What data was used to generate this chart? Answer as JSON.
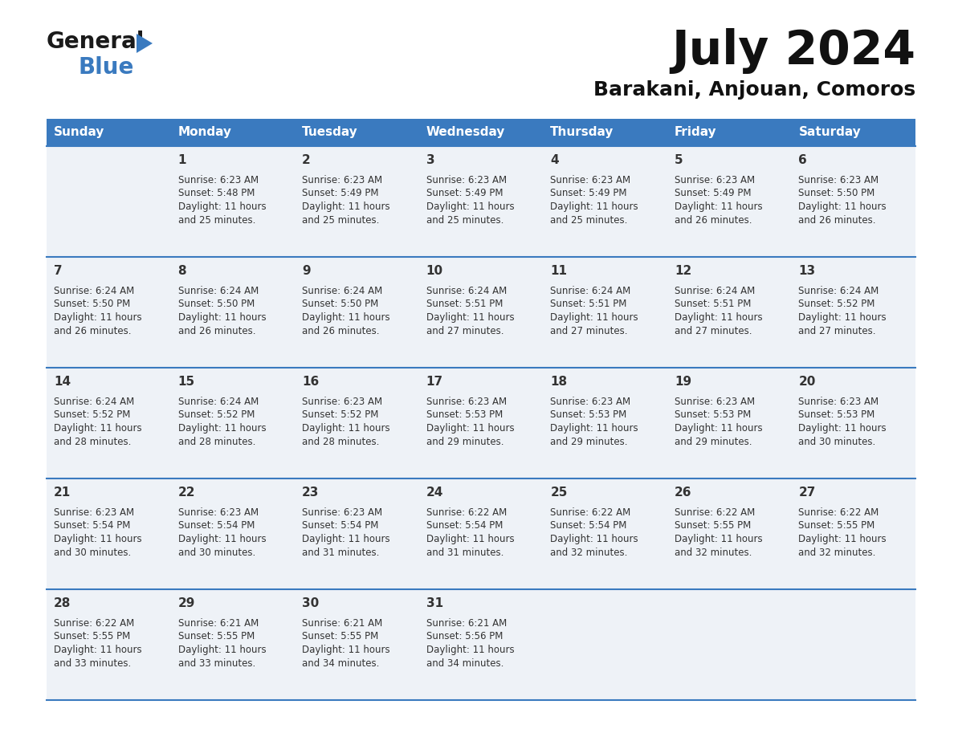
{
  "title": "July 2024",
  "subtitle": "Barakani, Anjouan, Comoros",
  "header_bg": "#3a7abf",
  "header_text_color": "#ffffff",
  "cell_bg": "#eef2f7",
  "divider_color": "#3a7abf",
  "text_color": "#333333",
  "days_of_week": [
    "Sunday",
    "Monday",
    "Tuesday",
    "Wednesday",
    "Thursday",
    "Friday",
    "Saturday"
  ],
  "calendar": [
    [
      {
        "day": "",
        "sunrise": "",
        "sunset": "",
        "daylight": ""
      },
      {
        "day": "1",
        "sunrise": "6:23 AM",
        "sunset": "5:48 PM",
        "daylight": "11 hours and 25 minutes."
      },
      {
        "day": "2",
        "sunrise": "6:23 AM",
        "sunset": "5:49 PM",
        "daylight": "11 hours and 25 minutes."
      },
      {
        "day": "3",
        "sunrise": "6:23 AM",
        "sunset": "5:49 PM",
        "daylight": "11 hours and 25 minutes."
      },
      {
        "day": "4",
        "sunrise": "6:23 AM",
        "sunset": "5:49 PM",
        "daylight": "11 hours and 25 minutes."
      },
      {
        "day": "5",
        "sunrise": "6:23 AM",
        "sunset": "5:49 PM",
        "daylight": "11 hours and 26 minutes."
      },
      {
        "day": "6",
        "sunrise": "6:23 AM",
        "sunset": "5:50 PM",
        "daylight": "11 hours and 26 minutes."
      }
    ],
    [
      {
        "day": "7",
        "sunrise": "6:24 AM",
        "sunset": "5:50 PM",
        "daylight": "11 hours and 26 minutes."
      },
      {
        "day": "8",
        "sunrise": "6:24 AM",
        "sunset": "5:50 PM",
        "daylight": "11 hours and 26 minutes."
      },
      {
        "day": "9",
        "sunrise": "6:24 AM",
        "sunset": "5:50 PM",
        "daylight": "11 hours and 26 minutes."
      },
      {
        "day": "10",
        "sunrise": "6:24 AM",
        "sunset": "5:51 PM",
        "daylight": "11 hours and 27 minutes."
      },
      {
        "day": "11",
        "sunrise": "6:24 AM",
        "sunset": "5:51 PM",
        "daylight": "11 hours and 27 minutes."
      },
      {
        "day": "12",
        "sunrise": "6:24 AM",
        "sunset": "5:51 PM",
        "daylight": "11 hours and 27 minutes."
      },
      {
        "day": "13",
        "sunrise": "6:24 AM",
        "sunset": "5:52 PM",
        "daylight": "11 hours and 27 minutes."
      }
    ],
    [
      {
        "day": "14",
        "sunrise": "6:24 AM",
        "sunset": "5:52 PM",
        "daylight": "11 hours and 28 minutes."
      },
      {
        "day": "15",
        "sunrise": "6:24 AM",
        "sunset": "5:52 PM",
        "daylight": "11 hours and 28 minutes."
      },
      {
        "day": "16",
        "sunrise": "6:23 AM",
        "sunset": "5:52 PM",
        "daylight": "11 hours and 28 minutes."
      },
      {
        "day": "17",
        "sunrise": "6:23 AM",
        "sunset": "5:53 PM",
        "daylight": "11 hours and 29 minutes."
      },
      {
        "day": "18",
        "sunrise": "6:23 AM",
        "sunset": "5:53 PM",
        "daylight": "11 hours and 29 minutes."
      },
      {
        "day": "19",
        "sunrise": "6:23 AM",
        "sunset": "5:53 PM",
        "daylight": "11 hours and 29 minutes."
      },
      {
        "day": "20",
        "sunrise": "6:23 AM",
        "sunset": "5:53 PM",
        "daylight": "11 hours and 30 minutes."
      }
    ],
    [
      {
        "day": "21",
        "sunrise": "6:23 AM",
        "sunset": "5:54 PM",
        "daylight": "11 hours and 30 minutes."
      },
      {
        "day": "22",
        "sunrise": "6:23 AM",
        "sunset": "5:54 PM",
        "daylight": "11 hours and 30 minutes."
      },
      {
        "day": "23",
        "sunrise": "6:23 AM",
        "sunset": "5:54 PM",
        "daylight": "11 hours and 31 minutes."
      },
      {
        "day": "24",
        "sunrise": "6:22 AM",
        "sunset": "5:54 PM",
        "daylight": "11 hours and 31 minutes."
      },
      {
        "day": "25",
        "sunrise": "6:22 AM",
        "sunset": "5:54 PM",
        "daylight": "11 hours and 32 minutes."
      },
      {
        "day": "26",
        "sunrise": "6:22 AM",
        "sunset": "5:55 PM",
        "daylight": "11 hours and 32 minutes."
      },
      {
        "day": "27",
        "sunrise": "6:22 AM",
        "sunset": "5:55 PM",
        "daylight": "11 hours and 32 minutes."
      }
    ],
    [
      {
        "day": "28",
        "sunrise": "6:22 AM",
        "sunset": "5:55 PM",
        "daylight": "11 hours and 33 minutes."
      },
      {
        "day": "29",
        "sunrise": "6:21 AM",
        "sunset": "5:55 PM",
        "daylight": "11 hours and 33 minutes."
      },
      {
        "day": "30",
        "sunrise": "6:21 AM",
        "sunset": "5:55 PM",
        "daylight": "11 hours and 34 minutes."
      },
      {
        "day": "31",
        "sunrise": "6:21 AM",
        "sunset": "5:56 PM",
        "daylight": "11 hours and 34 minutes."
      },
      {
        "day": "",
        "sunrise": "",
        "sunset": "",
        "daylight": ""
      },
      {
        "day": "",
        "sunrise": "",
        "sunset": "",
        "daylight": ""
      },
      {
        "day": "",
        "sunrise": "",
        "sunset": "",
        "daylight": ""
      }
    ]
  ]
}
